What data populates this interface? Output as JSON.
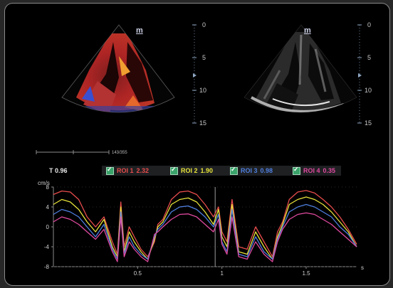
{
  "sector_labels": {
    "left": "m",
    "right": "m"
  },
  "depth_ticks": [
    "0",
    "5",
    "10",
    "15"
  ],
  "frame_counter": "143/355",
  "time_value": "T 0.96",
  "rois": [
    {
      "label": "ROI 1",
      "value": "2.32",
      "color": "#e84c4c"
    },
    {
      "label": "ROI 2",
      "value": "1.90",
      "color": "#e7e23a"
    },
    {
      "label": "ROI 3",
      "value": "0.98",
      "color": "#4f7fe0"
    },
    {
      "label": "ROI 4",
      "value": "0.35",
      "color": "#e04aa0"
    }
  ],
  "chart_data": {
    "type": "line",
    "ylabel": "cm/s",
    "xlabel": "s",
    "ylim": [
      -8,
      8
    ],
    "xlim": [
      0,
      1.8
    ],
    "yticks": [
      "8",
      "4",
      "0",
      "-4",
      "-8"
    ],
    "xticks": [
      "0.5",
      "1",
      "1.5"
    ],
    "marker_time": 0.96,
    "series": [
      {
        "name": "ROI 1",
        "color": "#e84c4c",
        "x": [
          0.0,
          0.05,
          0.1,
          0.15,
          0.2,
          0.25,
          0.3,
          0.35,
          0.38,
          0.4,
          0.42,
          0.45,
          0.48,
          0.52,
          0.56,
          0.6,
          0.62,
          0.65,
          0.7,
          0.75,
          0.8,
          0.85,
          0.9,
          0.95,
          0.98,
          1.0,
          1.03,
          1.06,
          1.1,
          1.15,
          1.2,
          1.25,
          1.3,
          1.33,
          1.36,
          1.4,
          1.45,
          1.5,
          1.55,
          1.6,
          1.65,
          1.7,
          1.75,
          1.8
        ],
        "y": [
          6.5,
          7.2,
          7.0,
          5.5,
          2.0,
          0.0,
          2.0,
          -3.0,
          -5.5,
          5.0,
          -4.0,
          0.0,
          -2.0,
          -4.5,
          -6.0,
          -3.0,
          0.5,
          1.5,
          5.5,
          7.0,
          7.2,
          6.5,
          4.5,
          2.0,
          4.0,
          -1.0,
          -3.0,
          5.5,
          -4.0,
          -4.5,
          0.0,
          -3.0,
          -6.0,
          -1.0,
          1.0,
          5.5,
          7.0,
          7.3,
          6.8,
          5.5,
          4.0,
          2.0,
          -0.5,
          -3.5
        ]
      },
      {
        "name": "ROI 2",
        "color": "#e7e23a",
        "x": [
          0.0,
          0.05,
          0.1,
          0.15,
          0.2,
          0.25,
          0.3,
          0.35,
          0.38,
          0.4,
          0.42,
          0.45,
          0.48,
          0.52,
          0.56,
          0.6,
          0.62,
          0.65,
          0.7,
          0.75,
          0.8,
          0.85,
          0.9,
          0.95,
          0.98,
          1.0,
          1.03,
          1.06,
          1.1,
          1.15,
          1.2,
          1.25,
          1.3,
          1.33,
          1.36,
          1.4,
          1.45,
          1.5,
          1.55,
          1.6,
          1.65,
          1.7,
          1.75,
          1.8
        ],
        "y": [
          4.5,
          5.5,
          5.0,
          3.5,
          1.0,
          -1.0,
          1.5,
          -4.0,
          -6.0,
          4.0,
          -5.0,
          -1.0,
          -3.0,
          -5.0,
          -6.5,
          -2.5,
          0.0,
          1.0,
          4.5,
          5.5,
          5.8,
          5.0,
          3.0,
          0.5,
          3.5,
          -2.0,
          -4.0,
          4.5,
          -5.0,
          -5.5,
          -1.0,
          -4.0,
          -6.5,
          -2.0,
          0.5,
          4.5,
          5.5,
          6.0,
          5.5,
          4.5,
          3.0,
          1.0,
          -1.0,
          -4.0
        ]
      },
      {
        "name": "ROI 3",
        "color": "#4f7fe0",
        "x": [
          0.0,
          0.05,
          0.1,
          0.15,
          0.2,
          0.25,
          0.3,
          0.35,
          0.38,
          0.4,
          0.42,
          0.45,
          0.48,
          0.52,
          0.56,
          0.6,
          0.62,
          0.65,
          0.7,
          0.75,
          0.8,
          0.85,
          0.9,
          0.95,
          0.98,
          1.0,
          1.03,
          1.06,
          1.1,
          1.15,
          1.2,
          1.25,
          1.3,
          1.33,
          1.36,
          1.4,
          1.45,
          1.5,
          1.55,
          1.6,
          1.65,
          1.7,
          1.75,
          1.8
        ],
        "y": [
          2.5,
          3.5,
          3.0,
          2.0,
          0.0,
          -2.0,
          0.5,
          -4.5,
          -6.5,
          3.0,
          -5.5,
          -2.0,
          -4.0,
          -5.5,
          -6.5,
          -2.0,
          -0.5,
          0.5,
          3.0,
          4.0,
          4.2,
          3.5,
          2.0,
          0.0,
          2.5,
          -3.0,
          -5.0,
          3.5,
          -5.5,
          -6.0,
          -2.0,
          -5.0,
          -6.5,
          -2.5,
          0.0,
          3.0,
          4.0,
          4.5,
          4.0,
          3.0,
          2.0,
          0.0,
          -1.5,
          -4.0
        ]
      },
      {
        "name": "ROI 4",
        "color": "#e04aa0",
        "x": [
          0.0,
          0.05,
          0.1,
          0.15,
          0.2,
          0.25,
          0.3,
          0.35,
          0.38,
          0.4,
          0.42,
          0.45,
          0.48,
          0.52,
          0.56,
          0.6,
          0.62,
          0.65,
          0.7,
          0.75,
          0.8,
          0.85,
          0.9,
          0.95,
          0.98,
          1.0,
          1.03,
          1.06,
          1.1,
          1.15,
          1.2,
          1.25,
          1.3,
          1.33,
          1.36,
          1.4,
          1.45,
          1.5,
          1.55,
          1.6,
          1.65,
          1.7,
          1.75,
          1.8
        ],
        "y": [
          1.0,
          2.0,
          1.5,
          0.5,
          -1.0,
          -2.5,
          -0.5,
          -5.0,
          -7.0,
          2.0,
          -6.0,
          -3.0,
          -4.5,
          -6.0,
          -7.0,
          -1.5,
          -1.0,
          0.0,
          1.5,
          2.5,
          2.6,
          2.0,
          0.5,
          -1.0,
          1.5,
          -3.5,
          -5.5,
          2.0,
          -6.0,
          -6.5,
          -3.0,
          -5.5,
          -7.0,
          -3.0,
          -0.5,
          1.5,
          2.5,
          2.8,
          2.5,
          1.5,
          0.5,
          -1.0,
          -2.5,
          -4.0
        ]
      }
    ]
  }
}
